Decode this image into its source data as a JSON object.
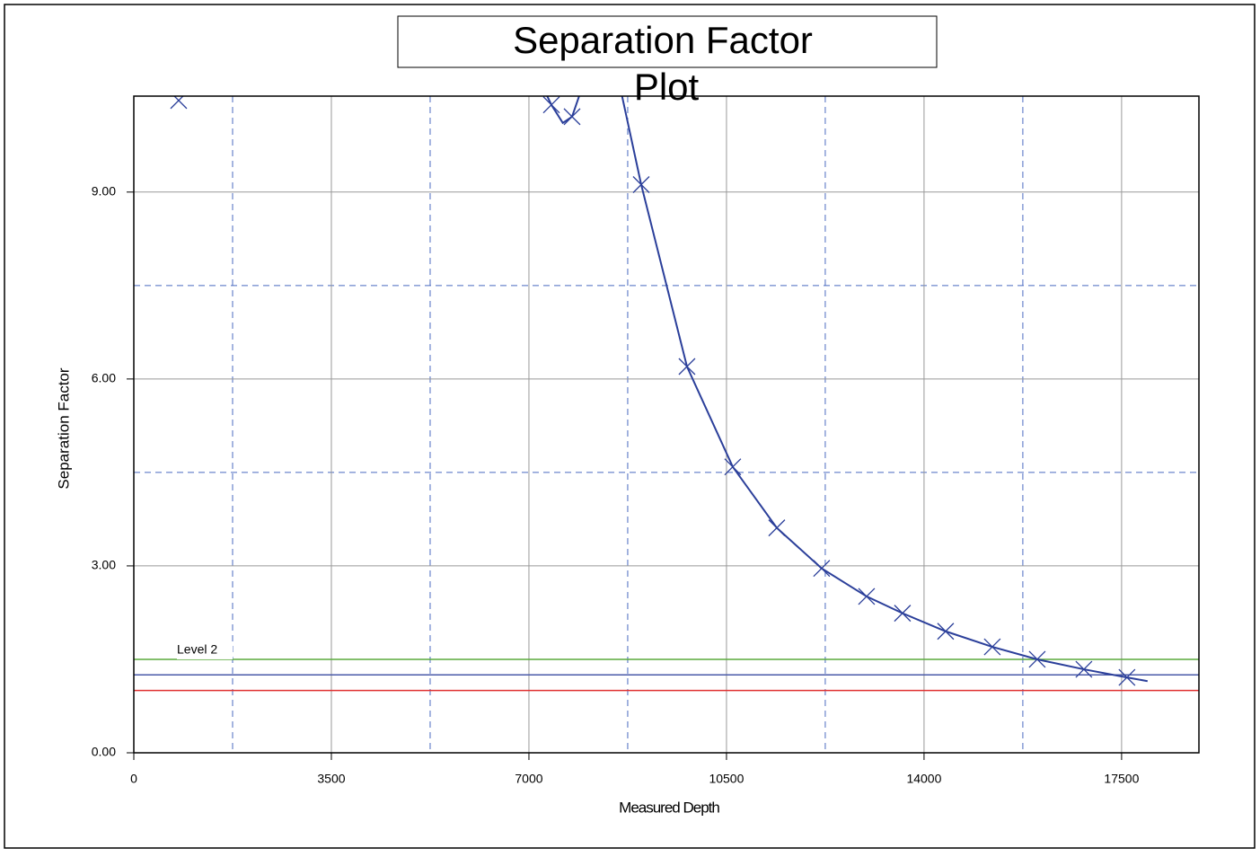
{
  "chart_data": {
    "type": "scatter",
    "title": "Separation Factor",
    "title_line2": "Plot",
    "x_label": "Measured Depth",
    "y_label": "Separation Factor",
    "xlim": [
      0,
      18870
    ],
    "ylim": [
      0,
      10.54
    ],
    "xticks": [
      0,
      3500,
      7000,
      10500,
      14000,
      17500
    ],
    "yticks": [
      {
        "value": 0,
        "label": "0.00"
      },
      {
        "value": 3,
        "label": "3.00"
      },
      {
        "value": 6,
        "label": "6.00"
      },
      {
        "value": 9,
        "label": "9.00"
      }
    ],
    "x_minor_grid": [
      1750,
      5250,
      8750,
      12250,
      15750
    ],
    "y_minor_grid": [
      4.5,
      7.5
    ],
    "grid": true,
    "color": "#2b3f9a",
    "points": {
      "x": [
        795,
        7398,
        7764,
        8989,
        9800,
        10611,
        11391,
        12186,
        12982,
        13618,
        14382,
        15209,
        16005,
        16832,
        17595
      ],
      "y": [
        10.47,
        10.4,
        10.21,
        9.12,
        6.2,
        4.59,
        3.61,
        2.96,
        2.51,
        2.24,
        1.95,
        1.7,
        1.5,
        1.34,
        1.21
      ]
    },
    "curve": {
      "x": [
        7240,
        7398,
        7600,
        7764,
        7950,
        null,
        8650,
        8989,
        9800,
        10611,
        11391,
        12186,
        12982,
        13618,
        14382,
        15209,
        16005,
        16832,
        17595,
        17960
      ],
      "y": [
        10.7,
        10.4,
        10.11,
        10.21,
        10.7,
        null,
        10.54,
        9.12,
        6.2,
        4.59,
        3.61,
        2.96,
        2.51,
        2.24,
        1.95,
        1.7,
        1.5,
        1.34,
        1.21,
        1.15
      ]
    },
    "ref_lines": [
      {
        "value": 1.5,
        "color": "#5aaa3c",
        "label": "Level 2"
      },
      {
        "value": 1.25,
        "color": "#4a5aa8"
      },
      {
        "value": 1.0,
        "color": "#e03030"
      }
    ]
  }
}
